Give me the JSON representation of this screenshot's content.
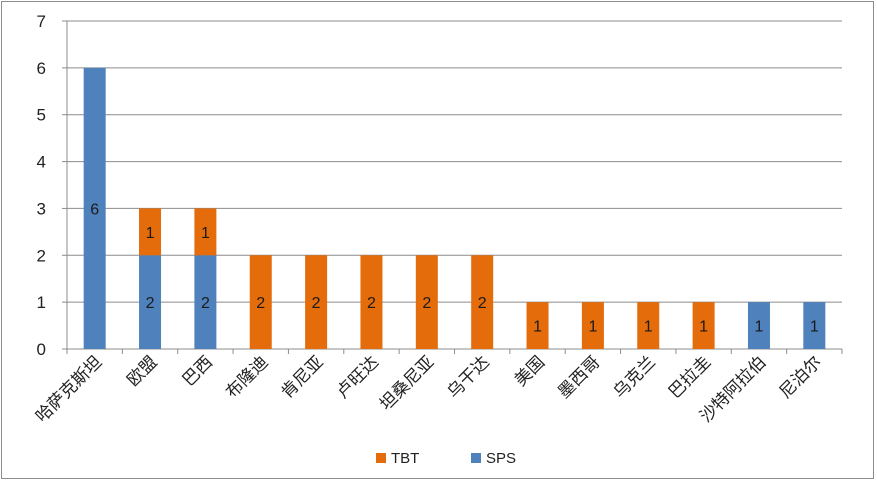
{
  "chart_data": {
    "type": "bar",
    "stacked": true,
    "title": "",
    "xlabel": "",
    "ylabel": "",
    "ylim": [
      0,
      7
    ],
    "yticks": [
      0,
      1,
      2,
      3,
      4,
      5,
      6,
      7
    ],
    "grid": true,
    "legend_position": "bottom",
    "categories": [
      "哈萨克斯坦",
      "欧盟",
      "巴西",
      "布隆迪",
      "肯尼亚",
      "卢旺达",
      "坦桑尼亚",
      "乌干达",
      "美国",
      "墨西哥",
      "乌克兰",
      "巴拉圭",
      "沙特阿拉伯",
      "尼泊尔"
    ],
    "series": [
      {
        "name": "SPS",
        "color": "#4f81bd",
        "values": [
          6,
          2,
          2,
          0,
          0,
          0,
          0,
          0,
          0,
          0,
          0,
          0,
          1,
          1
        ]
      },
      {
        "name": "TBT",
        "color": "#e46c0a",
        "values": [
          0,
          1,
          1,
          2,
          2,
          2,
          2,
          2,
          1,
          1,
          1,
          1,
          0,
          0
        ]
      }
    ],
    "legend": [
      {
        "name": "TBT",
        "color": "#e46c0a"
      },
      {
        "name": "SPS",
        "color": "#4f81bd"
      }
    ]
  }
}
